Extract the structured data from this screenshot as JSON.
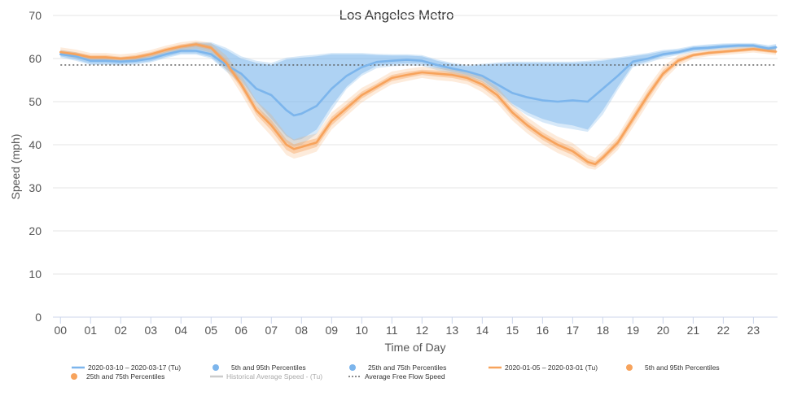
{
  "chart_data": {
    "type": "line",
    "title": "Los Angeles Metro",
    "xlabel": "Time of Day",
    "ylabel": "Speed (mph)",
    "ylim": [
      0,
      70
    ],
    "yticks": [
      0,
      10,
      20,
      30,
      40,
      50,
      60,
      70
    ],
    "xlim": [
      -0.25,
      23.8
    ],
    "categories": [
      "00",
      "01",
      "02",
      "03",
      "04",
      "05",
      "06",
      "07",
      "08",
      "09",
      "10",
      "11",
      "12",
      "13",
      "14",
      "15",
      "16",
      "17",
      "18",
      "19",
      "20",
      "21",
      "22",
      "23"
    ],
    "grid": true,
    "legend": "bottom",
    "free_flow_speed": 58.5,
    "series": [
      {
        "name": "2020-03-10 – 2020-03-17 (Tu)",
        "color": "#7cb5ec",
        "x": [
          0,
          0.5,
          1,
          1.5,
          2,
          2.5,
          3,
          3.5,
          4,
          4.5,
          5,
          5.5,
          6,
          6.5,
          7,
          7.5,
          7.75,
          8,
          8.5,
          9,
          9.5,
          10,
          10.5,
          11,
          11.5,
          12,
          12.5,
          13,
          13.5,
          14,
          14.5,
          15,
          15.5,
          16,
          16.5,
          17,
          17.5,
          18,
          18.5,
          19,
          19.5,
          20,
          20.5,
          21,
          21.5,
          22,
          22.5,
          23,
          23.5,
          23.75
        ],
        "y": [
          61,
          60.5,
          59.5,
          59.5,
          59.3,
          59.5,
          60,
          61,
          61.8,
          61.8,
          61,
          58.5,
          56.5,
          53,
          51.5,
          48,
          46.8,
          47.2,
          49,
          53,
          56,
          58,
          59.2,
          59.5,
          59.7,
          59.5,
          58.5,
          57.7,
          57,
          56,
          54,
          52,
          51,
          50.3,
          50,
          50.3,
          50,
          53,
          56,
          59.3,
          60,
          61,
          61.5,
          62.3,
          62.5,
          62.8,
          63,
          63,
          62.3,
          62.6
        ],
        "p25": [
          60.5,
          59.8,
          58.8,
          58.8,
          58.7,
          58.9,
          59.4,
          60.4,
          61.2,
          61.2,
          60.3,
          57.5,
          55,
          50,
          46,
          42,
          41,
          41.3,
          43.5,
          49,
          53.5,
          56.5,
          58.3,
          58.7,
          58.9,
          58.8,
          57.8,
          57,
          56.2,
          55,
          52.5,
          49.5,
          47.5,
          46,
          45,
          44.5,
          43.5,
          48,
          53.5,
          58.5,
          59.4,
          60.5,
          61.1,
          61.8,
          62.1,
          62.4,
          62.6,
          62.6,
          61.8,
          62.1
        ],
        "p75": [
          61.6,
          61.2,
          60.2,
          60.2,
          60,
          60.2,
          60.6,
          61.6,
          62.5,
          63.5,
          63.5,
          62,
          60,
          59,
          58.5,
          59.8,
          60,
          60.2,
          60.5,
          61,
          61,
          61,
          60.8,
          60.7,
          60.7,
          60.5,
          59.5,
          58.7,
          58.2,
          58.5,
          58.8,
          59,
          59,
          59,
          59,
          59,
          59.2,
          59.5,
          60,
          60.5,
          61,
          61.7,
          62,
          62.8,
          63,
          63.3,
          63.4,
          63.4,
          62.8,
          63.1
        ],
        "p5": [
          60.2,
          59.5,
          58.5,
          58.5,
          58.4,
          58.6,
          59.1,
          60.1,
          60.9,
          60.9,
          60,
          57,
          54,
          49,
          44.5,
          40.5,
          39.5,
          40,
          42.5,
          48,
          53,
          56,
          57.8,
          58.2,
          58.4,
          58.3,
          57.3,
          56.5,
          55.7,
          54.5,
          52,
          49,
          46.8,
          45.2,
          44.2,
          43.6,
          43,
          47,
          52.8,
          58,
          59,
          60.1,
          60.8,
          61.5,
          61.8,
          62.1,
          62.3,
          62.3,
          61.5,
          61.8
        ],
        "p95": [
          62,
          61.5,
          60.5,
          60.5,
          60.3,
          60.5,
          61,
          62,
          63,
          63.8,
          63.8,
          62.5,
          60.5,
          59.5,
          59,
          60.2,
          60.4,
          60.6,
          60.9,
          61.3,
          61.3,
          61.3,
          61.1,
          61,
          61,
          60.8,
          59.8,
          59,
          58.5,
          58.8,
          59.1,
          59.3,
          59.3,
          59.3,
          59.3,
          59.3,
          59.5,
          59.8,
          60.3,
          60.8,
          61.3,
          62,
          62.3,
          63,
          63.3,
          63.5,
          63.6,
          63.6,
          63.1,
          63.4
        ]
      },
      {
        "name": "2020-01-05 – 2020-03-01 (Tu)",
        "color": "#f7a35c",
        "x": [
          0,
          0.5,
          1,
          1.5,
          2,
          2.5,
          3,
          3.5,
          4,
          4.5,
          5,
          5.5,
          6,
          6.5,
          7,
          7.5,
          7.75,
          8,
          8.5,
          9,
          9.5,
          10,
          10.5,
          11,
          11.5,
          12,
          12.5,
          13,
          13.5,
          14,
          14.5,
          15,
          15.5,
          16,
          16.5,
          17,
          17.5,
          17.75,
          18,
          18.5,
          19,
          19.5,
          20,
          20.5,
          21,
          21.5,
          22,
          22.5,
          23,
          23.5,
          23.75
        ],
        "y": [
          61.5,
          61,
          60.3,
          60.3,
          60,
          60.3,
          61,
          62,
          62.8,
          63.3,
          62.5,
          59,
          54,
          48,
          44.5,
          40,
          39,
          39.5,
          40.5,
          45.5,
          48.5,
          51.5,
          53.5,
          55.5,
          56.2,
          56.8,
          56.5,
          56.2,
          55.5,
          54,
          51.5,
          47.5,
          44.5,
          42,
          40,
          38.5,
          36,
          35.5,
          37,
          40.5,
          46,
          51.5,
          56.5,
          59.5,
          60.8,
          61.3,
          61.6,
          61.9,
          62.2,
          61.8,
          61.6
        ],
        "p25": [
          61.1,
          60.5,
          59.8,
          59.8,
          59.6,
          59.8,
          60.5,
          61.5,
          62.3,
          62.8,
          62,
          58.2,
          53,
          47,
          43.3,
          38.8,
          37.9,
          38.4,
          39.5,
          44.5,
          47.6,
          50.7,
          52.8,
          54.8,
          55.5,
          56.2,
          55.8,
          55.5,
          54.8,
          53.2,
          50.6,
          46.6,
          43.6,
          41.1,
          39.1,
          37.6,
          35.2,
          34.8,
          36.2,
          39.6,
          45,
          50.5,
          55.7,
          58.9,
          60.4,
          60.9,
          61.2,
          61.5,
          61.8,
          61.4,
          61.2
        ],
        "p75": [
          61.9,
          61.5,
          60.8,
          60.8,
          60.4,
          60.8,
          61.5,
          62.5,
          63.3,
          63.8,
          63,
          59.8,
          55,
          49,
          45.7,
          41.2,
          40.1,
          40.6,
          41.5,
          46.5,
          49.4,
          52.3,
          54.2,
          56.2,
          56.9,
          57.4,
          57.2,
          56.9,
          56.2,
          54.8,
          52.4,
          48.4,
          45.4,
          42.9,
          40.9,
          39.4,
          36.8,
          36.2,
          37.8,
          41.4,
          47,
          52.5,
          57.3,
          60.1,
          61.2,
          61.7,
          62,
          62.3,
          62.6,
          62.2,
          62
        ],
        "p5": [
          60.8,
          60.1,
          59.3,
          59.3,
          59.1,
          59.3,
          60,
          61,
          61.8,
          62.3,
          61.3,
          57.3,
          51.8,
          45.8,
          42,
          37.6,
          36.8,
          37.2,
          38.4,
          43.5,
          46.7,
          49.8,
          52,
          54,
          54.8,
          55.5,
          55,
          54.7,
          54,
          52.2,
          49.6,
          45.6,
          42.6,
          40.1,
          38.1,
          36.6,
          34.5,
          34.2,
          35.5,
          38.8,
          44,
          49.5,
          54.8,
          58.3,
          60,
          60.5,
          60.8,
          61.1,
          61.4,
          61,
          60.8
        ],
        "p95": [
          62.6,
          62.1,
          61.3,
          61.3,
          61,
          61.3,
          62,
          63,
          63.8,
          64.2,
          63.6,
          60.7,
          56.2,
          50.2,
          47,
          42.4,
          41.2,
          41.8,
          42.6,
          47.5,
          50.3,
          53.2,
          55,
          57,
          57.6,
          58.1,
          57.9,
          57.6,
          57,
          55.8,
          53.4,
          49.4,
          46.4,
          43.9,
          41.9,
          40.4,
          37.7,
          37,
          38.6,
          42.2,
          48,
          53.5,
          58.2,
          60.7,
          61.6,
          62.1,
          62.4,
          62.7,
          63,
          62.6,
          62.4
        ]
      }
    ],
    "legend_items": [
      {
        "label": "2020-03-10 – 2020-03-17 (Tu)",
        "kind": "line",
        "color": "#7cb5ec"
      },
      {
        "label": "5th and 95th Percentiles",
        "kind": "dot",
        "color": "#7cb5ec"
      },
      {
        "label": "25th and 75th Percentiles",
        "kind": "dot",
        "color": "#7cb5ec"
      },
      {
        "label": "2020-01-05 – 2020-03-01 (Tu)",
        "kind": "line",
        "color": "#f7a35c"
      },
      {
        "label": "5th and 95th Percentiles",
        "kind": "dot",
        "color": "#f7a35c"
      },
      {
        "label": "25th and 75th Percentiles",
        "kind": "dot",
        "color": "#f7a35c"
      },
      {
        "label": "Historical Average Speed - (Tu)",
        "kind": "line-muted",
        "color": "#cccccc"
      },
      {
        "label": "Average Free Flow Speed",
        "kind": "dotted",
        "color": "#666666"
      }
    ]
  }
}
